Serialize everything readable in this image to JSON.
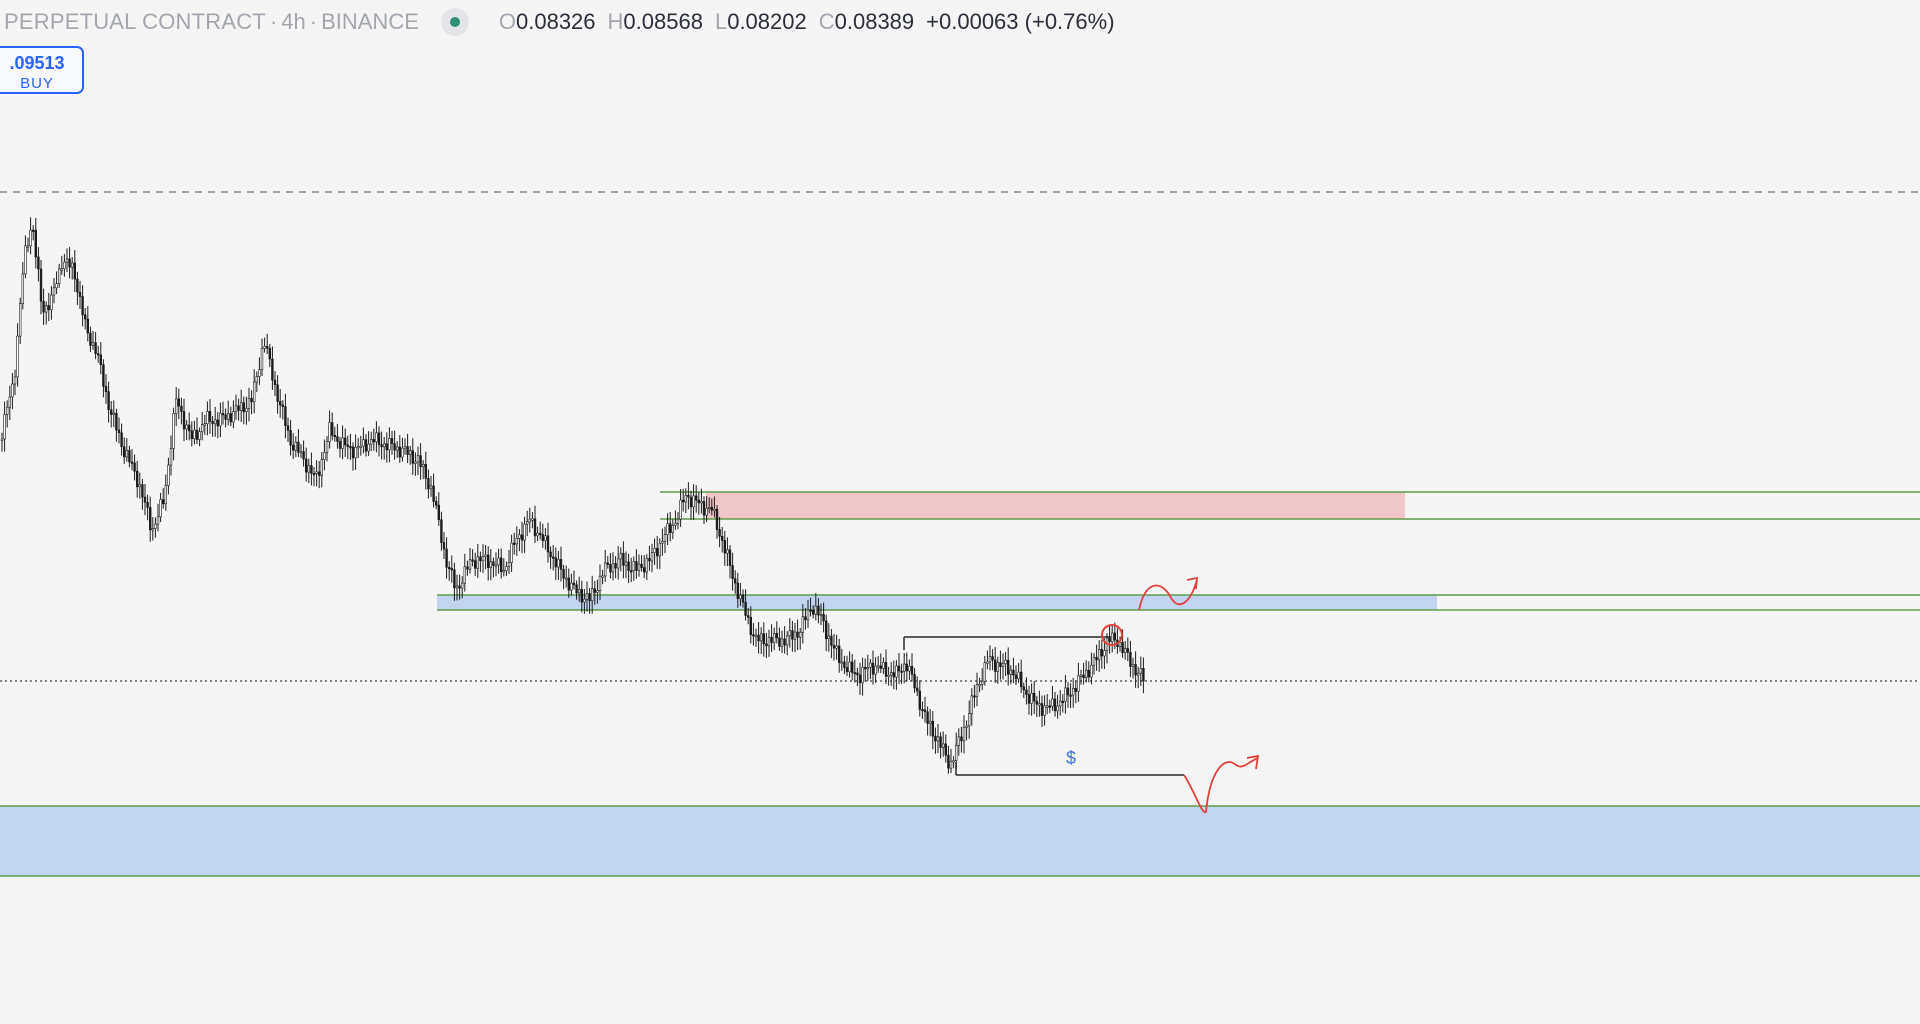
{
  "header": {
    "symbol": "PERPETUAL CONTRACT",
    "interval": "4h",
    "exchange": "BINANCE",
    "separator": "·",
    "ohlc": {
      "o_label": "O",
      "o": "0.08326",
      "h_label": "H",
      "h": "0.08568",
      "l_label": "L",
      "l": "0.08202",
      "c_label": "C",
      "c": "0.08389",
      "change": "+0.00063 (+0.76%)"
    }
  },
  "order_button": {
    "price": ".09513",
    "label": "BUY"
  },
  "annotations": {
    "liquidity_label": "$"
  },
  "colors": {
    "background": "#f5f5f5",
    "candle": "#1c1c1c",
    "supply_zone": "#f0c7c9",
    "demand_zone": "#c2d4f0",
    "zone_line": "#5d9c4a",
    "projection": "#e0413c",
    "buy_accent": "#2962ff",
    "status_dot": "#2e8f76"
  },
  "chart_data": {
    "type": "candlestick",
    "symbol": "PERPETUAL CONTRACT",
    "timeframe": "4h",
    "exchange": "BINANCE",
    "ohlc_last": {
      "open": 0.08326,
      "high": 0.08568,
      "low": 0.08202,
      "close": 0.08389
    },
    "change": "+0.00063 (+0.76%)",
    "order_price": 0.09513
  }
}
